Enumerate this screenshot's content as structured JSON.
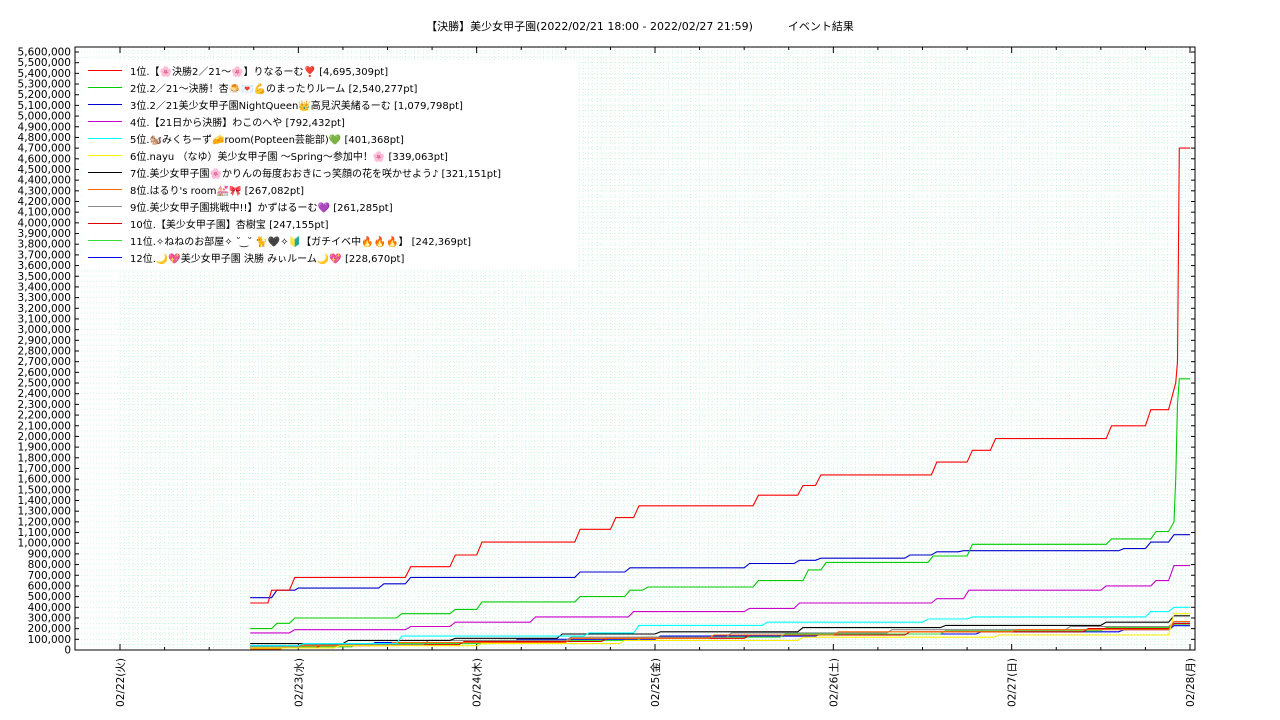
{
  "title": "【決勝】美少女甲子園(2022/02/21 18:00 - 2022/02/27 21:59)          イベント結果",
  "chart_data": {
    "type": "line",
    "title": "【決勝】美少女甲子園(2022/02/21 18:00 - 2022/02/27 21:59)          イベント結果",
    "xlabel": "",
    "ylabel": "",
    "x_ticks": [
      "02/22(火)",
      "02/23(水)",
      "02/24(木)",
      "02/25(金)",
      "02/26(土)",
      "02/27(日)",
      "02/28(月)"
    ],
    "x_range_days": [
      0,
      6
    ],
    "ylim": [
      0,
      5600000
    ],
    "y_tick_step": 100000,
    "y_ticks": [
      "0",
      "100,000",
      "200,000",
      "300,000",
      "400,000",
      "500,000",
      "600,000",
      "700,000",
      "800,000",
      "900,000",
      "1,000,000",
      "1,100,000",
      "1,200,000",
      "1,300,000",
      "1,400,000",
      "1,500,000",
      "1,600,000",
      "1,700,000",
      "1,800,000",
      "1,900,000",
      "2,000,000",
      "2,100,000",
      "2,200,000",
      "2,300,000",
      "2,400,000",
      "2,500,000",
      "2,600,000",
      "2,700,000",
      "2,800,000",
      "2,900,000",
      "3,000,000",
      "3,100,000",
      "3,200,000",
      "3,300,000",
      "3,400,000",
      "3,500,000",
      "3,600,000",
      "3,700,000",
      "3,800,000",
      "3,900,000",
      "4,000,000",
      "4,100,000",
      "4,200,000",
      "4,300,000",
      "4,400,000",
      "4,500,000",
      "4,600,000",
      "4,700,000",
      "4,800,000",
      "4,900,000",
      "5,000,000",
      "5,100,000",
      "5,200,000",
      "5,300,000",
      "5,400,000",
      "5,500,000",
      "5,600,000"
    ],
    "grid": true,
    "legend_position": "top-left",
    "series": [
      {
        "name": "1位.【🌸決勝2／21〜🌸】りなるーむ❣️ [4,695,309pt]",
        "color": "#ff0000",
        "points": [
          [
            0.73,
            440000
          ],
          [
            0.83,
            440000
          ],
          [
            0.85,
            560000
          ],
          [
            0.95,
            560000
          ],
          [
            0.98,
            680000
          ],
          [
            1.6,
            680000
          ],
          [
            1.63,
            780000
          ],
          [
            1.85,
            780000
          ],
          [
            1.88,
            890000
          ],
          [
            2.0,
            890000
          ],
          [
            2.03,
            1010000
          ],
          [
            2.55,
            1010000
          ],
          [
            2.58,
            1130000
          ],
          [
            2.75,
            1130000
          ],
          [
            2.78,
            1240000
          ],
          [
            2.88,
            1240000
          ],
          [
            2.91,
            1350000
          ],
          [
            3.55,
            1350000
          ],
          [
            3.58,
            1450000
          ],
          [
            3.8,
            1450000
          ],
          [
            3.83,
            1540000
          ],
          [
            3.9,
            1540000
          ],
          [
            3.93,
            1640000
          ],
          [
            4.55,
            1640000
          ],
          [
            4.58,
            1760000
          ],
          [
            4.75,
            1760000
          ],
          [
            4.78,
            1870000
          ],
          [
            4.88,
            1870000
          ],
          [
            4.91,
            1980000
          ],
          [
            5.53,
            1980000
          ],
          [
            5.56,
            2100000
          ],
          [
            5.75,
            2100000
          ],
          [
            5.78,
            2250000
          ],
          [
            5.88,
            2250000
          ],
          [
            5.92,
            2500000
          ],
          [
            5.93,
            2700000
          ],
          [
            5.94,
            4700000
          ],
          [
            6.0,
            4700000
          ]
        ]
      },
      {
        "name": "2位.2／21〜決勝！杏🍮💌💪のまったりルーム [2,540,277pt]",
        "color": "#00cc00",
        "points": [
          [
            0.73,
            200000
          ],
          [
            0.85,
            200000
          ],
          [
            0.88,
            250000
          ],
          [
            0.95,
            250000
          ],
          [
            0.98,
            300000
          ],
          [
            1.55,
            300000
          ],
          [
            1.58,
            340000
          ],
          [
            1.85,
            340000
          ],
          [
            1.88,
            380000
          ],
          [
            2.0,
            380000
          ],
          [
            2.03,
            450000
          ],
          [
            2.55,
            450000
          ],
          [
            2.58,
            500000
          ],
          [
            2.83,
            500000
          ],
          [
            2.86,
            560000
          ],
          [
            2.93,
            560000
          ],
          [
            2.96,
            590000
          ],
          [
            3.55,
            590000
          ],
          [
            3.58,
            650000
          ],
          [
            3.83,
            650000
          ],
          [
            3.86,
            750000
          ],
          [
            3.93,
            750000
          ],
          [
            3.96,
            820000
          ],
          [
            4.53,
            820000
          ],
          [
            4.56,
            880000
          ],
          [
            4.75,
            880000
          ],
          [
            4.78,
            990000
          ],
          [
            5.53,
            990000
          ],
          [
            5.56,
            1040000
          ],
          [
            5.78,
            1040000
          ],
          [
            5.81,
            1110000
          ],
          [
            5.88,
            1110000
          ],
          [
            5.91,
            1200000
          ],
          [
            5.92,
            1600000
          ],
          [
            5.93,
            2300000
          ],
          [
            5.94,
            2540000
          ],
          [
            6.0,
            2540000
          ]
        ]
      },
      {
        "name": "3位.2／21美少女甲子園NightQueen👑高見沢美緒るーむ [1,079,798pt]",
        "color": "#0000cc",
        "points": [
          [
            0.73,
            490000
          ],
          [
            0.85,
            490000
          ],
          [
            0.88,
            560000
          ],
          [
            0.98,
            560000
          ],
          [
            1.0,
            580000
          ],
          [
            1.45,
            580000
          ],
          [
            1.48,
            620000
          ],
          [
            1.6,
            620000
          ],
          [
            1.63,
            680000
          ],
          [
            2.55,
            680000
          ],
          [
            2.58,
            730000
          ],
          [
            2.83,
            730000
          ],
          [
            2.86,
            770000
          ],
          [
            3.5,
            770000
          ],
          [
            3.53,
            810000
          ],
          [
            3.78,
            810000
          ],
          [
            3.81,
            840000
          ],
          [
            3.9,
            840000
          ],
          [
            3.93,
            860000
          ],
          [
            4.4,
            860000
          ],
          [
            4.43,
            890000
          ],
          [
            4.55,
            890000
          ],
          [
            4.58,
            920000
          ],
          [
            4.7,
            920000
          ],
          [
            4.73,
            930000
          ],
          [
            5.6,
            930000
          ],
          [
            5.63,
            950000
          ],
          [
            5.75,
            950000
          ],
          [
            5.78,
            1010000
          ],
          [
            5.88,
            1010000
          ],
          [
            5.91,
            1080000
          ],
          [
            6.0,
            1080000
          ]
        ]
      },
      {
        "name": "4位.【21日から決勝】わこのへや [792,432pt]",
        "color": "#cc00cc",
        "points": [
          [
            0.73,
            160000
          ],
          [
            0.95,
            160000
          ],
          [
            0.98,
            190000
          ],
          [
            1.6,
            190000
          ],
          [
            1.63,
            220000
          ],
          [
            1.85,
            220000
          ],
          [
            1.88,
            260000
          ],
          [
            2.3,
            260000
          ],
          [
            2.33,
            310000
          ],
          [
            2.85,
            310000
          ],
          [
            2.88,
            360000
          ],
          [
            3.5,
            360000
          ],
          [
            3.53,
            390000
          ],
          [
            3.78,
            390000
          ],
          [
            3.81,
            440000
          ],
          [
            4.55,
            440000
          ],
          [
            4.58,
            480000
          ],
          [
            4.73,
            480000
          ],
          [
            4.76,
            560000
          ],
          [
            5.5,
            560000
          ],
          [
            5.53,
            600000
          ],
          [
            5.78,
            600000
          ],
          [
            5.81,
            650000
          ],
          [
            5.88,
            650000
          ],
          [
            5.91,
            790000
          ],
          [
            6.0,
            790000
          ]
        ]
      },
      {
        "name": "5位.🐿️みくちーず🧀room(Popteen芸能部)💚 [401,368pt]",
        "color": "#00ffff",
        "points": [
          [
            0.73,
            40000
          ],
          [
            1.0,
            40000
          ],
          [
            1.03,
            60000
          ],
          [
            1.55,
            60000
          ],
          [
            1.58,
            130000
          ],
          [
            2.6,
            130000
          ],
          [
            2.63,
            160000
          ],
          [
            2.88,
            160000
          ],
          [
            2.91,
            230000
          ],
          [
            3.6,
            230000
          ],
          [
            3.63,
            260000
          ],
          [
            4.5,
            260000
          ],
          [
            4.53,
            290000
          ],
          [
            4.75,
            290000
          ],
          [
            4.78,
            310000
          ],
          [
            5.75,
            310000
          ],
          [
            5.78,
            360000
          ],
          [
            5.88,
            360000
          ],
          [
            5.91,
            400000
          ],
          [
            6.0,
            400000
          ]
        ]
      },
      {
        "name": "6位.nayu （なゆ）美少女甲子園 〜Spring〜参加中！🌸 [339,063pt]",
        "color": "#ffee00",
        "points": [
          [
            0.73,
            20000
          ],
          [
            1.2,
            20000
          ],
          [
            1.23,
            40000
          ],
          [
            2.0,
            40000
          ],
          [
            2.03,
            60000
          ],
          [
            2.8,
            60000
          ],
          [
            2.83,
            90000
          ],
          [
            3.8,
            90000
          ],
          [
            3.83,
            120000
          ],
          [
            4.9,
            120000
          ],
          [
            4.93,
            140000
          ],
          [
            5.88,
            140000
          ],
          [
            5.91,
            340000
          ],
          [
            6.0,
            340000
          ]
        ]
      },
      {
        "name": "7位.美少女甲子園🌸かりんの毎度おおきにっ笑顔の花を咲かせよう♪ [321,151pt]",
        "color": "#000000",
        "points": [
          [
            0.73,
            60000
          ],
          [
            1.25,
            60000
          ],
          [
            1.28,
            90000
          ],
          [
            1.85,
            90000
          ],
          [
            1.88,
            110000
          ],
          [
            2.45,
            110000
          ],
          [
            2.48,
            150000
          ],
          [
            3.0,
            150000
          ],
          [
            3.03,
            170000
          ],
          [
            3.8,
            170000
          ],
          [
            3.83,
            210000
          ],
          [
            4.6,
            210000
          ],
          [
            4.63,
            230000
          ],
          [
            5.5,
            230000
          ],
          [
            5.53,
            260000
          ],
          [
            5.88,
            260000
          ],
          [
            5.91,
            320000
          ],
          [
            6.0,
            320000
          ]
        ]
      },
      {
        "name": "8位.はるり's room💒🎀 [267,082pt]",
        "color": "#ff6600",
        "points": [
          [
            0.73,
            10000
          ],
          [
            0.9,
            10000
          ],
          [
            0.93,
            40000
          ],
          [
            1.5,
            40000
          ],
          [
            1.53,
            70000
          ],
          [
            2.5,
            70000
          ],
          [
            2.53,
            110000
          ],
          [
            3.3,
            110000
          ],
          [
            3.33,
            140000
          ],
          [
            4.0,
            140000
          ],
          [
            4.03,
            170000
          ],
          [
            5.0,
            170000
          ],
          [
            5.03,
            190000
          ],
          [
            5.88,
            190000
          ],
          [
            5.91,
            267000
          ],
          [
            6.0,
            267000
          ]
        ]
      },
      {
        "name": "9位.美少女甲子園挑戦中!!】かずはるーむ💜 [261,285pt]",
        "color": "#888888",
        "points": [
          [
            0.73,
            30000
          ],
          [
            1.0,
            30000
          ],
          [
            1.03,
            50000
          ],
          [
            1.7,
            50000
          ],
          [
            1.73,
            90000
          ],
          [
            2.5,
            90000
          ],
          [
            2.53,
            120000
          ],
          [
            3.4,
            120000
          ],
          [
            3.43,
            160000
          ],
          [
            4.3,
            160000
          ],
          [
            4.33,
            190000
          ],
          [
            5.3,
            190000
          ],
          [
            5.33,
            220000
          ],
          [
            5.88,
            220000
          ],
          [
            5.91,
            261000
          ],
          [
            6.0,
            261000
          ]
        ]
      },
      {
        "name": "10位.【美少女甲子園】杏樹宝 [247,155pt]",
        "color": "#dd0000",
        "points": [
          [
            0.73,
            20000
          ],
          [
            1.1,
            20000
          ],
          [
            1.13,
            50000
          ],
          [
            1.9,
            50000
          ],
          [
            1.93,
            80000
          ],
          [
            2.7,
            80000
          ],
          [
            2.73,
            110000
          ],
          [
            3.5,
            110000
          ],
          [
            3.53,
            140000
          ],
          [
            4.4,
            140000
          ],
          [
            4.43,
            170000
          ],
          [
            5.4,
            170000
          ],
          [
            5.43,
            200000
          ],
          [
            5.88,
            200000
          ],
          [
            5.91,
            247000
          ],
          [
            6.0,
            247000
          ]
        ]
      },
      {
        "name": "11位.✧ねねのお部屋✧ ˘ ͜ ˘ 🐈🖤✧🔰【ガチイベ中🔥🔥🔥】 [242,369pt]",
        "color": "#33dd33",
        "points": [
          [
            0.73,
            30000
          ],
          [
            1.3,
            30000
          ],
          [
            1.33,
            60000
          ],
          [
            2.1,
            60000
          ],
          [
            2.13,
            90000
          ],
          [
            2.9,
            90000
          ],
          [
            2.93,
            120000
          ],
          [
            3.7,
            120000
          ],
          [
            3.73,
            150000
          ],
          [
            4.6,
            150000
          ],
          [
            4.63,
            180000
          ],
          [
            5.5,
            180000
          ],
          [
            5.53,
            210000
          ],
          [
            5.88,
            210000
          ],
          [
            5.91,
            242000
          ],
          [
            6.0,
            242000
          ]
        ]
      },
      {
        "name": "12位.🌙💖美少女甲子園 決勝 みぃルーム🌙💖 [228,670pt]",
        "color": "#0000ee",
        "points": [
          [
            0.73,
            40000
          ],
          [
            1.4,
            40000
          ],
          [
            1.43,
            70000
          ],
          [
            2.2,
            70000
          ],
          [
            2.23,
            100000
          ],
          [
            3.0,
            100000
          ],
          [
            3.03,
            130000
          ],
          [
            3.9,
            130000
          ],
          [
            3.93,
            150000
          ],
          [
            4.8,
            150000
          ],
          [
            4.83,
            170000
          ],
          [
            5.6,
            170000
          ],
          [
            5.63,
            190000
          ],
          [
            5.88,
            190000
          ],
          [
            5.91,
            228000
          ],
          [
            6.0,
            228000
          ]
        ]
      }
    ]
  }
}
